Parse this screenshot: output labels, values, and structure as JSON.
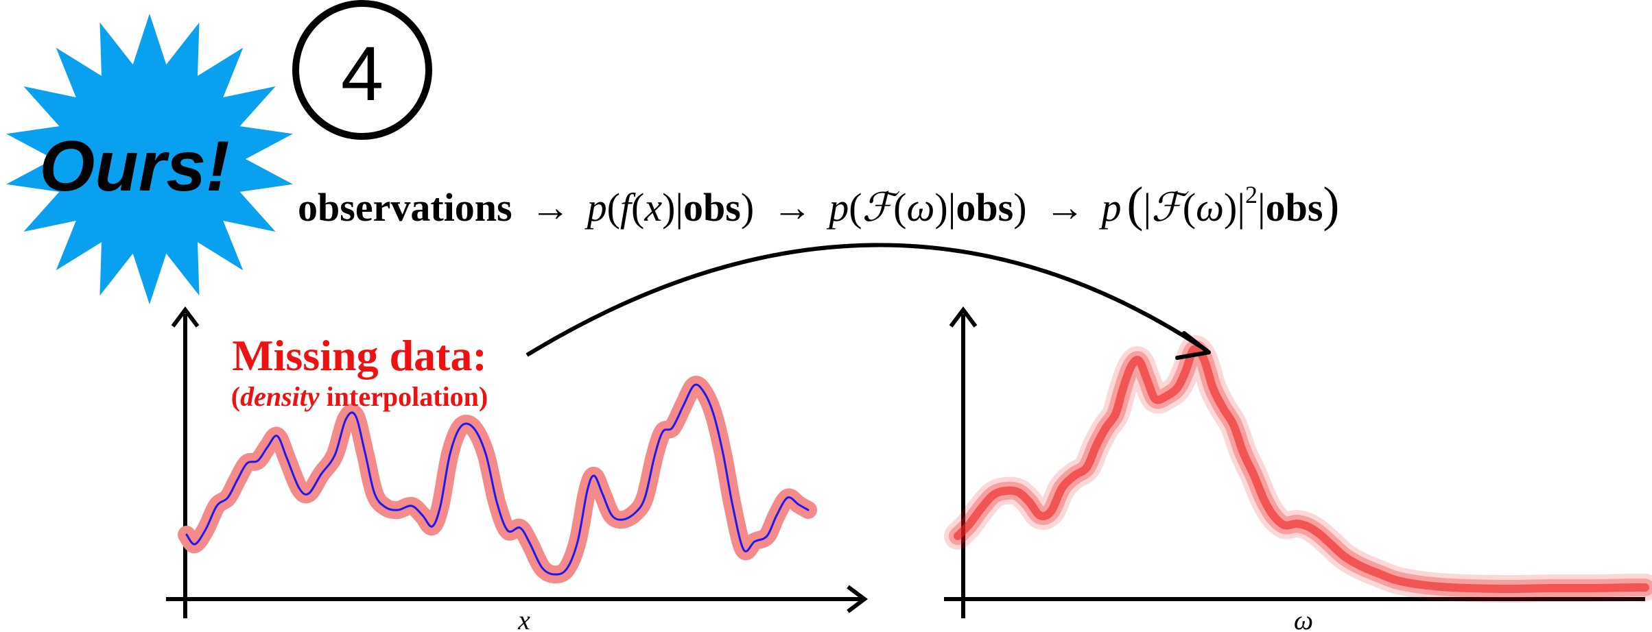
{
  "badge": {
    "text": "Ours!",
    "color": "#0aa0f0"
  },
  "step_number": "4",
  "pipeline": {
    "observations": "observations",
    "arrow": "→",
    "p": "p",
    "f": "f",
    "x": "x",
    "obs": "obs",
    "calF": "ℱ",
    "omega": "ω",
    "squared": "2"
  },
  "annotation": {
    "title": "Missing data:",
    "density": "density",
    "interpolation": "interpolation)",
    "open_paren": "(",
    "color": "#ee1111"
  },
  "left_plot": {
    "xlabel": "x",
    "band_color": "#f58a8a",
    "line_color": "#1a1aee"
  },
  "right_plot": {
    "xlabel": "ω",
    "band_color": "#ee2222"
  }
}
